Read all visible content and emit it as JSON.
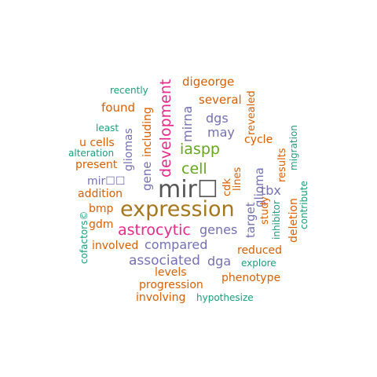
{
  "palette": {
    "dark_gray": "#555555",
    "brown": "#a6761d",
    "magenta": "#e7298a",
    "purple": "#7570b3",
    "green": "#66a61e",
    "orange": "#d95f02",
    "teal": "#1b9e77"
  },
  "words": [
    {
      "text": "mir☐",
      "color": "dark_gray",
      "weight": 10,
      "rotated": false
    },
    {
      "text": "expression",
      "color": "brown",
      "weight": 9,
      "rotated": false
    },
    {
      "text": "astrocytic",
      "color": "magenta",
      "weight": 7,
      "rotated": false
    },
    {
      "text": "development",
      "color": "magenta",
      "weight": 7,
      "rotated": true
    },
    {
      "text": "iaspp",
      "color": "green",
      "weight": 7,
      "rotated": false
    },
    {
      "text": "cell",
      "color": "green",
      "weight": 7,
      "rotated": false
    },
    {
      "text": "associated",
      "color": "purple",
      "weight": 6,
      "rotated": false
    },
    {
      "text": "genes",
      "color": "purple",
      "weight": 6,
      "rotated": false
    },
    {
      "text": "compared",
      "color": "purple",
      "weight": 6,
      "rotated": false
    },
    {
      "text": "mirna",
      "color": "purple",
      "weight": 6,
      "rotated": true
    },
    {
      "text": "target",
      "color": "purple",
      "weight": 6,
      "rotated": true
    },
    {
      "text": "glioma",
      "color": "purple",
      "weight": 6,
      "rotated": true
    },
    {
      "text": "dgs",
      "color": "purple",
      "weight": 6,
      "rotated": false
    },
    {
      "text": "may",
      "color": "purple",
      "weight": 6,
      "rotated": false
    },
    {
      "text": "tbx",
      "color": "purple",
      "weight": 6,
      "rotated": false
    },
    {
      "text": "dga",
      "color": "purple",
      "weight": 6,
      "rotated": false
    },
    {
      "text": "gliomas",
      "color": "purple",
      "weight": 5,
      "rotated": true
    },
    {
      "text": "gene",
      "color": "purple",
      "weight": 5,
      "rotated": true
    },
    {
      "text": "mir☐☐",
      "color": "purple",
      "weight": 5,
      "rotated": false
    },
    {
      "text": "digeorge",
      "color": "orange",
      "weight": 5,
      "rotated": false
    },
    {
      "text": "several",
      "color": "orange",
      "weight": 5,
      "rotated": false
    },
    {
      "text": "found",
      "color": "orange",
      "weight": 5,
      "rotated": false
    },
    {
      "text": "including",
      "color": "orange",
      "weight": 5,
      "rotated": true
    },
    {
      "text": "cycle",
      "color": "orange",
      "weight": 5,
      "rotated": false
    },
    {
      "text": "revealed",
      "color": "orange",
      "weight": 4,
      "rotated": true
    },
    {
      "text": "lines",
      "color": "orange",
      "weight": 5,
      "rotated": true
    },
    {
      "text": "cdk",
      "color": "orange",
      "weight": 4,
      "rotated": true
    },
    {
      "text": "results",
      "color": "orange",
      "weight": 4,
      "rotated": true
    },
    {
      "text": "u cells",
      "color": "orange",
      "weight": 5,
      "rotated": false
    },
    {
      "text": "present",
      "color": "orange",
      "weight": 5,
      "rotated": false
    },
    {
      "text": "addition",
      "color": "orange",
      "weight": 5,
      "rotated": false
    },
    {
      "text": "bmp",
      "color": "orange",
      "weight": 5,
      "rotated": false
    },
    {
      "text": "gdm",
      "color": "orange",
      "weight": 5,
      "rotated": false
    },
    {
      "text": "involved",
      "color": "orange",
      "weight": 5,
      "rotated": false
    },
    {
      "text": "levels",
      "color": "orange",
      "weight": 5,
      "rotated": false
    },
    {
      "text": "progression",
      "color": "orange",
      "weight": 5,
      "rotated": false
    },
    {
      "text": "involving",
      "color": "orange",
      "weight": 5,
      "rotated": false
    },
    {
      "text": "reduced",
      "color": "orange",
      "weight": 5,
      "rotated": false
    },
    {
      "text": "phenotype",
      "color": "orange",
      "weight": 5,
      "rotated": false
    },
    {
      "text": "study",
      "color": "orange",
      "weight": 4,
      "rotated": true
    },
    {
      "text": "deletion",
      "color": "orange",
      "weight": 5,
      "rotated": true
    },
    {
      "text": "recently",
      "color": "teal",
      "weight": 3,
      "rotated": false
    },
    {
      "text": "least",
      "color": "teal",
      "weight": 3,
      "rotated": false
    },
    {
      "text": "alteration",
      "color": "teal",
      "weight": 3,
      "rotated": false
    },
    {
      "text": "migration",
      "color": "teal",
      "weight": 3,
      "rotated": true
    },
    {
      "text": "contribute",
      "color": "teal",
      "weight": 3,
      "rotated": true
    },
    {
      "text": "inhibitor",
      "color": "teal",
      "weight": 3,
      "rotated": true
    },
    {
      "text": "explore",
      "color": "teal",
      "weight": 3,
      "rotated": false
    },
    {
      "text": "hypothesize",
      "color": "teal",
      "weight": 3,
      "rotated": false
    },
    {
      "text": "cofactors©",
      "color": "teal",
      "weight": 3,
      "rotated": true
    }
  ]
}
